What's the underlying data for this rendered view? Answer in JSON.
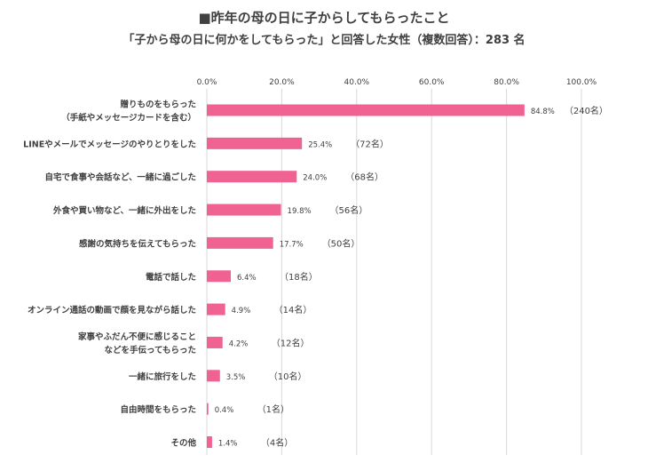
{
  "chart_data": {
    "type": "bar",
    "orientation": "horizontal",
    "title": "■昨年の母の日に子からしてもらったこと",
    "subtitle": "「子から母の日に何かをしてもらった」と回答した女性（複数回答）：283 名",
    "xlabel": "",
    "ylabel": "",
    "xlim": [
      0,
      100
    ],
    "x_ticks": [
      "0.0%",
      "20.0%",
      "40.0%",
      "60.0%",
      "80.0%",
      "100.0%"
    ],
    "grid": true,
    "legend": "none",
    "bar_color": "#F06292",
    "categories": [
      [
        "贈りものをもらった",
        "（手紙やメッセージカードを含む）"
      ],
      [
        "LINEやメールでメッセージのやりとりをした"
      ],
      [
        "自宅で食事や会話など、一緒に過ごした"
      ],
      [
        "外食や買い物など、一緒に外出をした"
      ],
      [
        "感謝の気持ちを伝えてもらった"
      ],
      [
        "電話で話した"
      ],
      [
        "オンライン通話の動画で顔を見ながら話した"
      ],
      [
        "家事やふだん不便に感じること",
        "などを手伝ってもらった"
      ],
      [
        "一緒に旅行をした"
      ],
      [
        "自由時間をもらった"
      ],
      [
        "その他"
      ]
    ],
    "values": [
      84.8,
      25.4,
      24.0,
      19.8,
      17.7,
      6.4,
      4.9,
      4.2,
      3.5,
      0.4,
      1.4
    ],
    "value_labels": [
      "84.8%",
      "25.4%",
      "24.0%",
      "19.8%",
      "17.7%",
      "6.4%",
      "4.9%",
      "4.2%",
      "3.5%",
      "0.4%",
      "1.4%"
    ],
    "counts": [
      "（240名）",
      "（72名）",
      "（68名）",
      "（56名）",
      "（50名）",
      "（18名）",
      "（14名）",
      "（12名）",
      "（10名）",
      "（1名）",
      "（4名）"
    ]
  }
}
